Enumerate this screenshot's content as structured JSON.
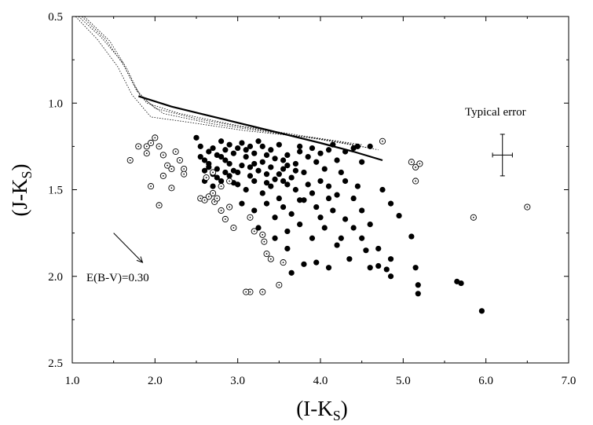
{
  "chart_data": {
    "type": "scatter",
    "title": "",
    "xlabel_main": "(I-K",
    "xlabel_sub": "S",
    "xlabel_close": ")",
    "ylabel_main": "(J-K",
    "ylabel_sub": "S",
    "ylabel_close": ")",
    "xlim": [
      1.0,
      7.0
    ],
    "ylim": [
      0.5,
      2.5
    ],
    "y_inverted": true,
    "grid": false,
    "x_ticks": [
      "1.0",
      "2.0",
      "3.0",
      "4.0",
      "5.0",
      "6.0",
      "7.0"
    ],
    "y_ticks": [
      "0.5",
      "1.0",
      "1.5",
      "2.0",
      "2.5"
    ],
    "annotations": {
      "typical_error": "Typical error",
      "reddening": "E(B-V)=0.30"
    },
    "error_bar": {
      "x": 6.2,
      "y": 1.3,
      "dx": 0.12,
      "dy": 0.12
    },
    "reddening_vector": {
      "x1": 1.5,
      "y1": 1.75,
      "x2": 1.85,
      "y2": 1.92
    },
    "thick_curve": [
      [
        1.8,
        0.96
      ],
      [
        2.2,
        1.02
      ],
      [
        2.8,
        1.09
      ],
      [
        3.4,
        1.16
      ],
      [
        4.0,
        1.23
      ],
      [
        4.4,
        1.28
      ],
      [
        4.75,
        1.33
      ]
    ],
    "dotted_curves": [
      [
        [
          1.03,
          0.48
        ],
        [
          1.35,
          0.62
        ],
        [
          1.6,
          0.76
        ],
        [
          1.75,
          0.9
        ],
        [
          1.9,
          1.0
        ],
        [
          2.3,
          1.06
        ],
        [
          3.0,
          1.13
        ],
        [
          3.8,
          1.19
        ],
        [
          4.5,
          1.24
        ]
      ],
      [
        [
          1.05,
          0.47
        ],
        [
          1.4,
          0.63
        ],
        [
          1.62,
          0.78
        ],
        [
          1.78,
          0.93
        ],
        [
          2.0,
          1.03
        ],
        [
          2.5,
          1.09
        ],
        [
          3.2,
          1.15
        ],
        [
          4.0,
          1.21
        ],
        [
          4.6,
          1.26
        ]
      ],
      [
        [
          1.08,
          0.47
        ],
        [
          1.45,
          0.64
        ],
        [
          1.66,
          0.8
        ],
        [
          1.82,
          0.96
        ],
        [
          2.1,
          1.06
        ],
        [
          2.7,
          1.12
        ],
        [
          3.4,
          1.17
        ],
        [
          4.2,
          1.22
        ],
        [
          4.7,
          1.27
        ]
      ],
      [
        [
          1.02,
          0.49
        ],
        [
          1.3,
          0.63
        ],
        [
          1.55,
          0.79
        ],
        [
          1.72,
          0.95
        ],
        [
          1.95,
          1.08
        ],
        [
          2.4,
          1.11
        ],
        [
          3.1,
          1.16
        ],
        [
          3.9,
          1.2
        ],
        [
          4.5,
          1.25
        ]
      ]
    ],
    "series": [
      {
        "marker": "filled-circle",
        "points": [
          [
            2.5,
            1.2
          ],
          [
            2.55,
            1.25
          ],
          [
            2.6,
            1.33
          ],
          [
            2.65,
            1.37
          ],
          [
            2.7,
            1.41
          ],
          [
            2.75,
            1.3
          ],
          [
            2.8,
            1.22
          ],
          [
            2.85,
            1.27
          ],
          [
            2.9,
            1.35
          ],
          [
            2.95,
            1.39
          ],
          [
            3.0,
            1.26
          ],
          [
            3.05,
            1.23
          ],
          [
            3.1,
            1.31
          ],
          [
            3.15,
            1.37
          ],
          [
            3.2,
            1.29
          ],
          [
            3.25,
            1.22
          ],
          [
            3.3,
            1.34
          ],
          [
            3.35,
            1.41
          ],
          [
            3.4,
            1.27
          ],
          [
            3.45,
            1.32
          ],
          [
            3.5,
            1.24
          ],
          [
            3.55,
            1.38
          ],
          [
            3.6,
            1.3
          ],
          [
            3.65,
            1.43
          ],
          [
            3.7,
            1.35
          ],
          [
            3.75,
            1.28
          ],
          [
            3.8,
            1.4
          ],
          [
            3.85,
            1.31
          ],
          [
            3.9,
            1.26
          ],
          [
            3.95,
            1.34
          ],
          [
            4.0,
            1.29
          ],
          [
            4.05,
            1.38
          ],
          [
            4.1,
            1.27
          ],
          [
            4.15,
            1.24
          ],
          [
            4.2,
            1.33
          ],
          [
            4.3,
            1.28
          ],
          [
            4.4,
            1.26
          ],
          [
            4.45,
            1.25
          ],
          [
            4.5,
            1.34
          ],
          [
            4.6,
            1.25
          ],
          [
            2.6,
            1.45
          ],
          [
            2.7,
            1.48
          ],
          [
            2.8,
            1.45
          ],
          [
            2.9,
            1.42
          ],
          [
            3.0,
            1.47
          ],
          [
            3.1,
            1.5
          ],
          [
            3.2,
            1.45
          ],
          [
            3.3,
            1.52
          ],
          [
            3.4,
            1.48
          ],
          [
            3.5,
            1.55
          ],
          [
            3.6,
            1.47
          ],
          [
            3.7,
            1.5
          ],
          [
            3.8,
            1.56
          ],
          [
            3.9,
            1.52
          ],
          [
            4.0,
            1.45
          ],
          [
            4.1,
            1.48
          ],
          [
            4.2,
            1.53
          ],
          [
            3.05,
            1.58
          ],
          [
            3.2,
            1.62
          ],
          [
            3.35,
            1.58
          ],
          [
            3.45,
            1.66
          ],
          [
            3.55,
            1.6
          ],
          [
            3.65,
            1.64
          ],
          [
            3.75,
            1.56
          ],
          [
            3.25,
            1.72
          ],
          [
            3.45,
            1.78
          ],
          [
            3.6,
            1.74
          ],
          [
            3.6,
            1.84
          ],
          [
            3.8,
            1.93
          ],
          [
            3.65,
            1.98
          ],
          [
            2.65,
            1.35
          ],
          [
            2.75,
            1.38
          ],
          [
            2.85,
            1.33
          ],
          [
            2.95,
            1.29
          ],
          [
            3.05,
            1.36
          ],
          [
            3.15,
            1.42
          ],
          [
            3.25,
            1.39
          ],
          [
            3.35,
            1.3
          ],
          [
            3.45,
            1.44
          ],
          [
            3.55,
            1.33
          ],
          [
            2.7,
            1.26
          ],
          [
            2.8,
            1.31
          ],
          [
            2.9,
            1.24
          ],
          [
            3.0,
            1.4
          ],
          [
            3.1,
            1.27
          ],
          [
            3.2,
            1.35
          ],
          [
            3.3,
            1.25
          ],
          [
            3.4,
            1.37
          ],
          [
            3.5,
            1.41
          ],
          [
            3.6,
            1.36
          ],
          [
            2.55,
            1.31
          ],
          [
            2.65,
            1.28
          ],
          [
            2.75,
            1.43
          ],
          [
            2.85,
            1.4
          ],
          [
            2.95,
            1.46
          ],
          [
            3.35,
            1.46
          ],
          [
            3.55,
            1.45
          ],
          [
            3.7,
            1.39
          ],
          [
            2.6,
            1.39
          ],
          [
            3.15,
            1.25
          ],
          [
            4.3,
            1.45
          ],
          [
            4.4,
            1.55
          ],
          [
            4.5,
            1.62
          ],
          [
            4.6,
            1.7
          ],
          [
            4.4,
            1.72
          ],
          [
            4.3,
            1.67
          ],
          [
            4.5,
            1.78
          ],
          [
            4.15,
            1.62
          ],
          [
            4.25,
            1.78
          ],
          [
            4.55,
            1.85
          ],
          [
            4.35,
            1.9
          ],
          [
            4.1,
            1.95
          ],
          [
            3.95,
            1.92
          ],
          [
            4.2,
            1.82
          ],
          [
            4.0,
            1.66
          ],
          [
            4.75,
            1.5
          ],
          [
            4.85,
            1.58
          ],
          [
            4.7,
            1.84
          ],
          [
            4.85,
            1.9
          ],
          [
            4.8,
            1.96
          ],
          [
            4.85,
            2.0
          ],
          [
            4.7,
            1.94
          ],
          [
            4.6,
            1.95
          ],
          [
            4.95,
            1.65
          ],
          [
            5.1,
            1.77
          ],
          [
            5.15,
            1.95
          ],
          [
            5.18,
            2.05
          ],
          [
            5.18,
            2.1
          ],
          [
            5.65,
            2.03
          ],
          [
            5.7,
            2.04
          ],
          [
            5.95,
            2.2
          ],
          [
            3.75,
            1.7
          ],
          [
            3.9,
            1.78
          ],
          [
            4.05,
            1.72
          ],
          [
            3.95,
            1.6
          ],
          [
            4.45,
            1.48
          ],
          [
            4.1,
            1.55
          ],
          [
            3.85,
            1.47
          ],
          [
            3.75,
            1.25
          ],
          [
            4.25,
            1.4
          ]
        ]
      },
      {
        "marker": "open-circle-dot",
        "points": [
          [
            1.9,
            1.25
          ],
          [
            1.95,
            1.23
          ],
          [
            2.0,
            1.2
          ],
          [
            2.05,
            1.25
          ],
          [
            2.1,
            1.3
          ],
          [
            2.15,
            1.36
          ],
          [
            2.2,
            1.38
          ],
          [
            2.25,
            1.28
          ],
          [
            2.3,
            1.33
          ],
          [
            2.35,
            1.38
          ],
          [
            2.35,
            1.41
          ],
          [
            2.1,
            1.42
          ],
          [
            2.2,
            1.49
          ],
          [
            1.95,
            1.48
          ],
          [
            2.05,
            1.59
          ],
          [
            1.7,
            1.33
          ],
          [
            1.8,
            1.25
          ],
          [
            1.9,
            1.29
          ],
          [
            2.55,
            1.55
          ],
          [
            2.6,
            1.56
          ],
          [
            2.65,
            1.54
          ],
          [
            2.7,
            1.52
          ],
          [
            2.72,
            1.57
          ],
          [
            2.75,
            1.55
          ],
          [
            2.8,
            1.62
          ],
          [
            2.85,
            1.67
          ],
          [
            2.9,
            1.6
          ],
          [
            2.95,
            1.72
          ],
          [
            2.62,
            1.43
          ],
          [
            2.7,
            1.4
          ],
          [
            2.8,
            1.48
          ],
          [
            2.9,
            1.45
          ],
          [
            3.15,
            1.66
          ],
          [
            3.2,
            1.74
          ],
          [
            3.3,
            1.76
          ],
          [
            3.32,
            1.8
          ],
          [
            3.35,
            1.87
          ],
          [
            3.4,
            1.9
          ],
          [
            3.55,
            1.92
          ],
          [
            3.15,
            2.09
          ],
          [
            3.3,
            2.09
          ],
          [
            3.5,
            2.05
          ],
          [
            3.1,
            2.09
          ],
          [
            4.75,
            1.22
          ],
          [
            5.1,
            1.34
          ],
          [
            5.15,
            1.37
          ],
          [
            5.2,
            1.35
          ],
          [
            5.15,
            1.45
          ],
          [
            5.85,
            1.66
          ],
          [
            6.5,
            1.6
          ]
        ]
      }
    ]
  }
}
